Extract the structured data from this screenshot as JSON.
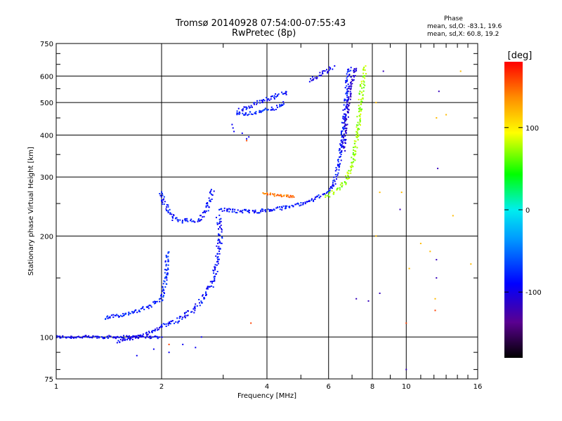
{
  "header": {
    "title_line1": "Tromsø 20140928 07:54:00-07:55:43",
    "title_line2": "RwPretec (8p)",
    "phase_stats_title": "Phase",
    "phase_stats_o": "mean, sd,O: -83.1, 19.6",
    "phase_stats_x": "mean, sd,X:  60.8, 19.2"
  },
  "chart_data": {
    "type": "scatter",
    "title": "Tromsø 20140928 07:54:00-07:55:43",
    "subtitle": "RwPretec (8p)",
    "xlabel": "Frequency [MHz]",
    "ylabel": "Stationary phase Virtual Height [km]",
    "x_scale": "log",
    "y_scale": "log",
    "xlim": [
      1,
      16
    ],
    "ylim": [
      75,
      750
    ],
    "xticks": [
      1,
      2,
      4,
      6,
      8,
      10,
      16
    ],
    "yticks": [
      75,
      100,
      200,
      300,
      400,
      500,
      600,
      750
    ],
    "grid": true,
    "colorbar": {
      "label": "[deg]",
      "range": [
        -180,
        180
      ],
      "ticks": [
        100,
        0,
        -100
      ]
    },
    "series": [
      {
        "kind": "curve",
        "phase": -95,
        "spread": 0.01,
        "points": [
          [
            1.0,
            100
          ],
          [
            1.25,
            100
          ],
          [
            1.5,
            100
          ],
          [
            1.8,
            100
          ],
          [
            2.0,
            100
          ]
        ]
      },
      {
        "kind": "curve",
        "phase": -80,
        "spread": 0.012,
        "points": [
          [
            1.38,
            114
          ],
          [
            1.5,
            116
          ],
          [
            1.65,
            118
          ],
          [
            1.8,
            122
          ],
          [
            2.0,
            130
          ],
          [
            2.06,
            150
          ],
          [
            2.08,
            180
          ]
        ]
      },
      {
        "kind": "curve",
        "phase": -95,
        "spread": 0.01,
        "points": [
          [
            1.5,
            97
          ],
          [
            1.7,
            100
          ],
          [
            1.9,
            104
          ],
          [
            2.0,
            108
          ]
        ]
      },
      {
        "kind": "curve",
        "phase": -85,
        "spread": 0.016,
        "points": [
          [
            2.0,
            270
          ],
          [
            2.05,
            245
          ],
          [
            2.15,
            227
          ],
          [
            2.3,
            222
          ],
          [
            2.55,
            222
          ],
          [
            2.62,
            230
          ],
          [
            2.7,
            242
          ],
          [
            2.75,
            255
          ],
          [
            2.8,
            275
          ]
        ]
      },
      {
        "kind": "curve",
        "phase": -88,
        "spread": 0.016,
        "points": [
          [
            2.0,
            108
          ],
          [
            2.2,
            112
          ],
          [
            2.4,
            118
          ],
          [
            2.55,
            125
          ],
          [
            2.65,
            132
          ],
          [
            2.75,
            140
          ],
          [
            2.82,
            150
          ],
          [
            2.88,
            165
          ],
          [
            2.92,
            185
          ],
          [
            2.95,
            205
          ],
          [
            2.9,
            230
          ]
        ]
      },
      {
        "kind": "curve",
        "phase": -85,
        "spread": 0.012,
        "points": [
          [
            2.9,
            240
          ],
          [
            3.2,
            238
          ],
          [
            3.5,
            237
          ],
          [
            3.8,
            237
          ],
          [
            4.2,
            240
          ],
          [
            4.8,
            247
          ],
          [
            5.4,
            256
          ],
          [
            5.9,
            268
          ],
          [
            6.2,
            285
          ],
          [
            6.4,
            320
          ],
          [
            6.55,
            380
          ],
          [
            6.65,
            450
          ],
          [
            6.75,
            530
          ],
          [
            6.82,
            600
          ],
          [
            6.88,
            640
          ]
        ]
      },
      {
        "kind": "curve",
        "phase": -110,
        "spread": 0.012,
        "points": [
          [
            6.6,
            360
          ],
          [
            6.7,
            420
          ],
          [
            6.8,
            480
          ],
          [
            6.9,
            540
          ],
          [
            7.05,
            600
          ],
          [
            7.2,
            640
          ]
        ]
      },
      {
        "kind": "curve",
        "phase": 75,
        "spread": 0.014,
        "points": [
          [
            5.9,
            262
          ],
          [
            6.3,
            272
          ],
          [
            6.6,
            285
          ],
          [
            6.9,
            310
          ],
          [
            7.1,
            350
          ],
          [
            7.25,
            400
          ],
          [
            7.35,
            460
          ],
          [
            7.45,
            530
          ],
          [
            7.55,
            600
          ],
          [
            7.65,
            640
          ]
        ]
      },
      {
        "kind": "curve",
        "phase": -90,
        "spread": 0.014,
        "points": [
          [
            3.3,
            470
          ],
          [
            3.6,
            490
          ],
          [
            4.0,
            510
          ],
          [
            4.3,
            525
          ],
          [
            4.6,
            540
          ]
        ]
      },
      {
        "kind": "curve",
        "phase": -80,
        "spread": 0.012,
        "points": [
          [
            3.3,
            460
          ],
          [
            3.6,
            465
          ],
          [
            4.0,
            475
          ],
          [
            4.3,
            485
          ],
          [
            4.5,
            500
          ]
        ]
      },
      {
        "kind": "curve",
        "phase": -100,
        "spread": 0.012,
        "points": [
          [
            5.3,
            580
          ],
          [
            5.6,
            600
          ],
          [
            5.9,
            620
          ],
          [
            6.2,
            640
          ]
        ]
      },
      {
        "kind": "curve",
        "phase": 145,
        "spread": 0.008,
        "points": [
          [
            3.9,
            268
          ],
          [
            4.2,
            265
          ],
          [
            4.5,
            263
          ],
          [
            4.8,
            262
          ]
        ]
      },
      {
        "kind": "points",
        "phase": -95,
        "points": [
          [
            3.2,
            420
          ],
          [
            3.22,
            410
          ],
          [
            3.18,
            430
          ],
          [
            3.5,
            390
          ],
          [
            3.55,
            395
          ],
          [
            3.4,
            405
          ],
          [
            2.3,
            95
          ],
          [
            2.5,
            93
          ],
          [
            2.6,
            100
          ],
          [
            2.1,
            90
          ],
          [
            1.9,
            92
          ],
          [
            1.7,
            88
          ]
        ]
      },
      {
        "kind": "points",
        "phase": 120,
        "points": [
          [
            8.2,
            500
          ],
          [
            8.4,
            270
          ],
          [
            8.2,
            200
          ],
          [
            9.7,
            270
          ],
          [
            10.2,
            160
          ],
          [
            11.0,
            190
          ],
          [
            11.7,
            180
          ],
          [
            13.0,
            460
          ],
          [
            13.6,
            230
          ],
          [
            14.3,
            620
          ],
          [
            15.3,
            165
          ],
          [
            12.1,
            130
          ],
          [
            12.2,
            450
          ]
        ]
      },
      {
        "kind": "points",
        "phase": -120,
        "points": [
          [
            8.4,
            135
          ],
          [
            9.6,
            240
          ],
          [
            10.0,
            80
          ],
          [
            12.2,
            170
          ],
          [
            12.2,
            150
          ],
          [
            12.4,
            540
          ],
          [
            12.3,
            318
          ],
          [
            7.2,
            130
          ],
          [
            7.8,
            128
          ],
          [
            8.6,
            620
          ]
        ]
      },
      {
        "kind": "points",
        "phase": 160,
        "points": [
          [
            3.5,
            385
          ],
          [
            3.6,
            110
          ],
          [
            2.1,
            95
          ],
          [
            12.1,
            120
          ],
          [
            10.0,
            110
          ]
        ]
      }
    ]
  }
}
